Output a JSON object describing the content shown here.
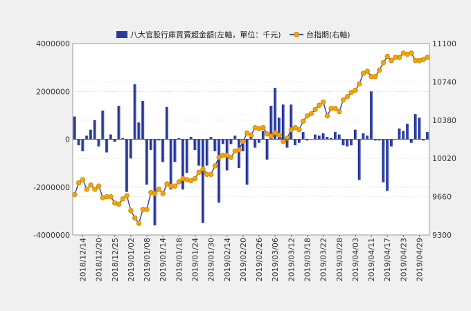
{
  "chart_data": {
    "type": "bar+line",
    "legend": [
      {
        "name": "八大官股行庫買賣超金額(左軸，單位：千元)",
        "kind": "bar",
        "color": "#2b3a9e"
      },
      {
        "name": "台指期(右軸)",
        "kind": "line",
        "color": "#f0a800"
      }
    ],
    "y_left": {
      "ylim": [
        -4000000,
        4000000
      ],
      "ticks": [
        "4000000",
        "2000000",
        "0",
        "-2000000",
        "-4000000"
      ]
    },
    "y_right": {
      "ylim": [
        9300,
        11100
      ],
      "ticks": [
        "11100",
        "10740",
        "10380",
        "10020",
        "9660",
        "9300"
      ]
    },
    "x_tick_labels": [
      "2018/12/14",
      "2018/12/20",
      "2018/12/25",
      "2019/01/02",
      "2019/01/08",
      "2019/01/14",
      "2019/01/18",
      "2019/01/24",
      "2019/01/30",
      "2019/02/14",
      "2019/02/20",
      "2019/02/26",
      "2019/03/06",
      "2019/03/12",
      "2019/03/18",
      "2019/03/22",
      "2019/03/28",
      "2019/04/03",
      "2019/04/11",
      "2019/04/17",
      "2019/04/23",
      "2019/04/29"
    ],
    "x_tick_index": [
      2,
      6,
      10,
      14,
      18,
      22,
      26,
      30,
      34,
      38,
      42,
      46,
      50,
      54,
      58,
      62,
      66,
      70,
      74,
      78,
      82,
      86
    ],
    "colors": {
      "bar_dark": "#141c6e",
      "bar_light": "#4a64d8",
      "line": "#3a46a8",
      "marker": "#f6a500",
      "marker_edge": "#c98400"
    },
    "bar_values": [
      950000,
      -250000,
      -500000,
      150000,
      400000,
      800000,
      -300000,
      1200000,
      -550000,
      200000,
      -100000,
      1400000,
      50000,
      -2200000,
      -800000,
      2300000,
      700000,
      1600000,
      -1900000,
      -450000,
      -3600000,
      -50000,
      -950000,
      1350000,
      -2100000,
      -950000,
      50000,
      -2100000,
      -1400000,
      100000,
      -450000,
      -1100000,
      -3500000,
      -1100000,
      100000,
      -500000,
      -2650000,
      -200000,
      -1300000,
      -200000,
      150000,
      -1200000,
      -500000,
      -1900000,
      200000,
      -350000,
      -150000,
      350000,
      -850000,
      1400000,
      2150000,
      900000,
      1450000,
      -350000,
      1450000,
      -250000,
      -150000,
      300000,
      -50000,
      0,
      200000,
      150000,
      250000,
      100000,
      50000,
      300000,
      200000,
      -250000,
      -300000,
      -250000,
      400000,
      -1700000,
      250000,
      150000,
      2000000,
      -50000,
      -50000,
      -1800000,
      -2150000,
      -300000,
      0,
      450000,
      350000,
      650000,
      -150000,
      1050000,
      900000,
      -50000,
      300000
    ],
    "line_values": [
      9680,
      9790,
      9820,
      9730,
      9770,
      9730,
      9760,
      9650,
      9660,
      9660,
      9600,
      9590,
      9640,
      9670,
      9530,
      9460,
      9410,
      9540,
      9540,
      9700,
      9690,
      9730,
      9690,
      9780,
      9760,
      9760,
      9800,
      9830,
      9820,
      9810,
      9830,
      9890,
      9920,
      9870,
      9870,
      9950,
      10030,
      10050,
      10050,
      10030,
      10090,
      10100,
      10180,
      10260,
      10240,
      10310,
      10300,
      10310,
      10250,
      10230,
      10260,
      10240,
      10180,
      10210,
      10290,
      10310,
      10290,
      10370,
      10420,
      10440,
      10480,
      10520,
      10550,
      10420,
      10490,
      10490,
      10460,
      10570,
      10600,
      10640,
      10660,
      10720,
      10820,
      10840,
      10790,
      10790,
      10850,
      10920,
      10980,
      10940,
      10970,
      10970,
      11010,
      11000,
      11010,
      10940,
      10940,
      10950,
      10970
    ]
  }
}
